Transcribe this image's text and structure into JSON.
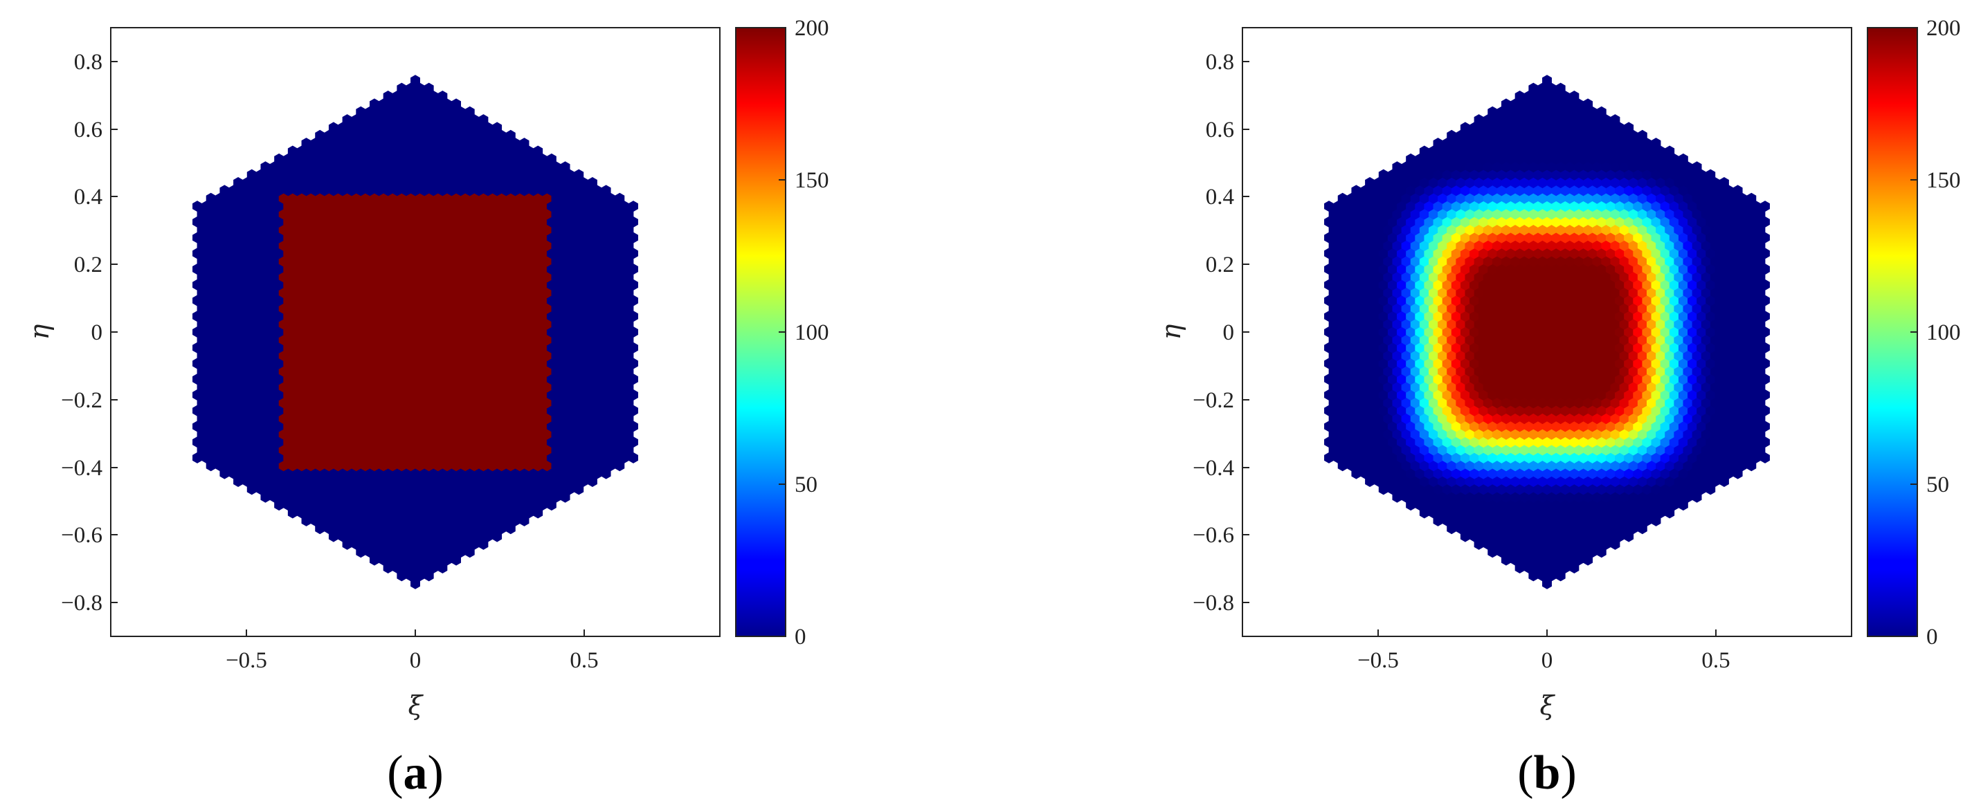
{
  "chart_data": [
    {
      "type": "heatmap",
      "panel_label_open": "(",
      "panel_label_letter": "a",
      "panel_label_close": ")",
      "xlabel": "ξ",
      "ylabel": "η",
      "xlim": [
        -0.9,
        0.9
      ],
      "ylim": [
        -0.9,
        0.9
      ],
      "xticks": [
        -0.5,
        0,
        0.5
      ],
      "xtick_labels": [
        "−0.5",
        "0",
        "0.5"
      ],
      "yticks": [
        -0.8,
        -0.6,
        -0.4,
        -0.2,
        0,
        0.2,
        0.4,
        0.6,
        0.8
      ],
      "ytick_labels": [
        "−0.8",
        "−0.6",
        "−0.4",
        "−0.2",
        "0",
        "0.2",
        "0.4",
        "0.6",
        "0.8"
      ],
      "colorbar": {
        "min": 0,
        "max": 200,
        "ticks": [
          0,
          50,
          100,
          150,
          200
        ],
        "tick_labels": [
          "0",
          "50",
          "100",
          "150",
          "200"
        ],
        "colormap": "jet"
      },
      "domain": {
        "shape": "hexagon",
        "vertices": [
          [
            0,
            0.75
          ],
          [
            0.65,
            0.375
          ],
          [
            0.65,
            -0.375
          ],
          [
            0,
            -0.75
          ],
          [
            -0.65,
            -0.375
          ],
          [
            -0.65,
            0.375
          ]
        ]
      },
      "field": {
        "kind": "step_square",
        "inside_value": 200,
        "outside_value": 0,
        "square_x": [
          -0.4,
          0.4
        ],
        "square_y": [
          -0.4,
          0.4
        ]
      }
    },
    {
      "type": "heatmap",
      "panel_label_open": "(",
      "panel_label_letter": "b",
      "panel_label_close": ")",
      "xlabel": "ξ",
      "ylabel": "η",
      "xlim": [
        -0.9,
        0.9
      ],
      "ylim": [
        -0.9,
        0.9
      ],
      "xticks": [
        -0.5,
        0,
        0.5
      ],
      "xtick_labels": [
        "−0.5",
        "0",
        "0.5"
      ],
      "yticks": [
        -0.8,
        -0.6,
        -0.4,
        -0.2,
        0,
        0.2,
        0.4,
        0.6,
        0.8
      ],
      "ytick_labels": [
        "−0.8",
        "−0.6",
        "−0.4",
        "−0.2",
        "0",
        "0.2",
        "0.4",
        "0.6",
        "0.8"
      ],
      "colorbar": {
        "min": 0,
        "max": 200,
        "ticks": [
          0,
          50,
          100,
          150,
          200
        ],
        "tick_labels": [
          "0",
          "50",
          "100",
          "150",
          "200"
        ],
        "colormap": "jet"
      },
      "domain": {
        "shape": "hexagon",
        "vertices": [
          [
            0,
            0.75
          ],
          [
            0.65,
            0.375
          ],
          [
            0.65,
            -0.375
          ],
          [
            0,
            -0.75
          ],
          [
            -0.65,
            -0.375
          ],
          [
            -0.65,
            0.375
          ]
        ]
      },
      "field": {
        "kind": "smoothed_square",
        "peak_value": 200,
        "plateau_half_width": 0.2,
        "falloff_width": 0.3
      }
    }
  ]
}
